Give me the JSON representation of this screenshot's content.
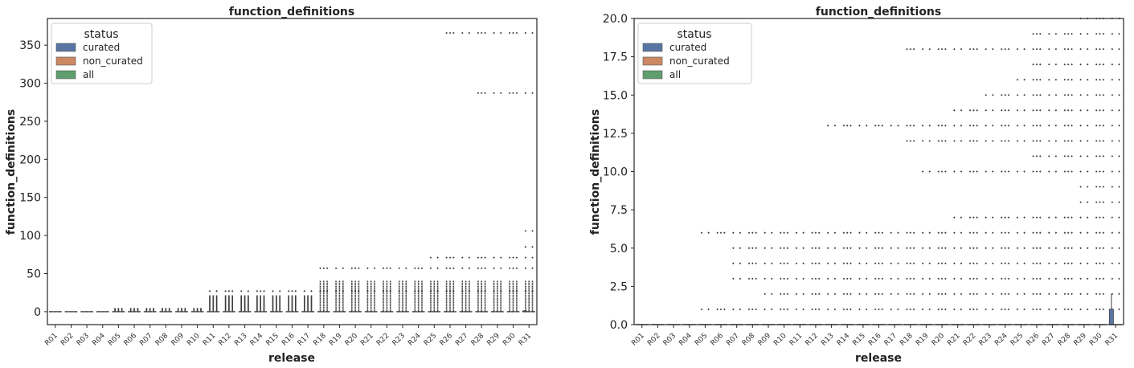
{
  "chart_data": [
    {
      "type": "box",
      "title": "function_definitions",
      "xlabel": "release",
      "ylabel": "function_definitions",
      "ylim": [
        -17,
        385
      ],
      "yticks": [
        0,
        50,
        100,
        150,
        200,
        250,
        300,
        350
      ],
      "ytick_labels": [
        "0",
        "50",
        "100",
        "150",
        "200",
        "250",
        "300",
        "350"
      ],
      "categories": [
        "R01",
        "R02",
        "R03",
        "R04",
        "R05",
        "R06",
        "R07",
        "R08",
        "R09",
        "R10",
        "R11",
        "R12",
        "R13",
        "R14",
        "R15",
        "R16",
        "R17",
        "R18",
        "R19",
        "R20",
        "R21",
        "R22",
        "R23",
        "R24",
        "R25",
        "R26",
        "R27",
        "R28",
        "R29",
        "R30",
        "R31"
      ],
      "legend": {
        "title": "status",
        "position": "top-left",
        "entries": [
          {
            "label": "curated",
            "color": "#5975a4"
          },
          {
            "label": "non_curated",
            "color": "#cc8963"
          },
          {
            "label": "all",
            "color": "#5f9e6e"
          }
        ]
      },
      "series": [
        {
          "name": "curated",
          "median": [
            0,
            0,
            0,
            0,
            0,
            0,
            0,
            0,
            0,
            0,
            0,
            0,
            0,
            0,
            0,
            0,
            0,
            0,
            0,
            0,
            0,
            0,
            0,
            0,
            0,
            0,
            0,
            0,
            0,
            0,
            0
          ],
          "q3": [
            0,
            0,
            0,
            0,
            0,
            0,
            0,
            0,
            0,
            0,
            0,
            0,
            0,
            0,
            0,
            0,
            0,
            0,
            0,
            0,
            0,
            0,
            0,
            0,
            0,
            0,
            0,
            0,
            0,
            0,
            1
          ],
          "whisker_high": [
            0,
            0,
            0,
            0,
            0,
            0,
            0,
            0,
            0,
            0,
            0,
            0,
            0,
            0,
            0,
            0,
            0,
            0,
            0,
            0,
            0,
            0,
            0,
            0,
            0,
            0,
            0,
            0,
            0,
            0,
            2
          ]
        },
        {
          "name": "non_curated",
          "median": [
            0,
            0,
            0,
            0,
            0,
            0,
            0,
            0,
            0,
            0,
            0,
            0,
            0,
            0,
            0,
            0,
            0,
            0,
            0,
            0,
            0,
            0,
            0,
            0,
            0,
            0,
            0,
            0,
            0,
            0,
            0
          ]
        },
        {
          "name": "all",
          "median": [
            0,
            0,
            0,
            0,
            0,
            0,
            0,
            0,
            0,
            0,
            0,
            0,
            0,
            0,
            0,
            0,
            0,
            0,
            0,
            0,
            0,
            0,
            0,
            0,
            0,
            0,
            0,
            0,
            0,
            0,
            0
          ]
        }
      ],
      "outlier_max": [
        0,
        0,
        0,
        0,
        6,
        6,
        6,
        6,
        6,
        6,
        27,
        27,
        27,
        27,
        27,
        27,
        27,
        57,
        57,
        57,
        57,
        57,
        57,
        57,
        71,
        366,
        366,
        366,
        366,
        366,
        366
      ],
      "outlier_levels": [
        {
          "value": 366,
          "from": "R26",
          "to": "R31"
        },
        {
          "value": 287,
          "from": "R28",
          "to": "R31"
        },
        {
          "value": 106,
          "from": "R31",
          "to": "R31"
        },
        {
          "value": 85,
          "from": "R31",
          "to": "R31"
        },
        {
          "value": 71,
          "from": "R25",
          "to": "R31"
        },
        {
          "value": 57,
          "from": "R18",
          "to": "R31"
        },
        {
          "value": 27,
          "from": "R11",
          "to": "R31"
        }
      ]
    },
    {
      "type": "box",
      "title": "function_definitions",
      "xlabel": "release",
      "ylabel": "function_definitions",
      "ylim": [
        0,
        20
      ],
      "yticks": [
        0,
        2.5,
        5,
        7.5,
        10,
        12.5,
        15,
        17.5,
        20
      ],
      "ytick_labels": [
        "0.0",
        "2.5",
        "5.0",
        "7.5",
        "10.0",
        "12.5",
        "15.0",
        "17.5",
        "20.0"
      ],
      "categories": [
        "R01",
        "R02",
        "R03",
        "R04",
        "R05",
        "R06",
        "R07",
        "R08",
        "R09",
        "R10",
        "R11",
        "R12",
        "R13",
        "R14",
        "R15",
        "R16",
        "R17",
        "R18",
        "R19",
        "R20",
        "R21",
        "R22",
        "R23",
        "R24",
        "R25",
        "R26",
        "R27",
        "R28",
        "R29",
        "R30",
        "R31"
      ],
      "legend": {
        "title": "status",
        "position": "top-left",
        "entries": [
          {
            "label": "curated",
            "color": "#5975a4"
          },
          {
            "label": "non_curated",
            "color": "#cc8963"
          },
          {
            "label": "all",
            "color": "#5f9e6e"
          }
        ]
      },
      "series": [
        {
          "name": "curated",
          "median": [
            0,
            0,
            0,
            0,
            0,
            0,
            0,
            0,
            0,
            0,
            0,
            0,
            0,
            0,
            0,
            0,
            0,
            0,
            0,
            0,
            0,
            0,
            0,
            0,
            0,
            0,
            0,
            0,
            0,
            0,
            0
          ],
          "q3": [
            0,
            0,
            0,
            0,
            0,
            0,
            0,
            0,
            0,
            0,
            0,
            0,
            0,
            0,
            0,
            0,
            0,
            0,
            0,
            0,
            0,
            0,
            0,
            0,
            0,
            0,
            0,
            0,
            0,
            0,
            1
          ],
          "whisker_high": [
            0,
            0,
            0,
            0,
            0,
            0,
            0,
            0,
            0,
            0,
            0,
            0,
            0,
            0,
            0,
            0,
            0,
            0,
            0,
            0,
            0,
            0,
            0,
            0,
            0,
            0,
            0,
            0,
            0,
            0,
            2
          ]
        },
        {
          "name": "non_curated",
          "median": [
            0,
            0,
            0,
            0,
            0,
            0,
            0,
            0,
            0,
            0,
            0,
            0,
            0,
            0,
            0,
            0,
            0,
            0,
            0,
            0,
            0,
            0,
            0,
            0,
            0,
            0,
            0,
            0,
            0,
            0,
            0
          ]
        },
        {
          "name": "all",
          "median": [
            0,
            0,
            0,
            0,
            0,
            0,
            0,
            0,
            0,
            0,
            0,
            0,
            0,
            0,
            0,
            0,
            0,
            0,
            0,
            0,
            0,
            0,
            0,
            0,
            0,
            0,
            0,
            0,
            0,
            0,
            0
          ]
        }
      ],
      "outlier_levels": [
        {
          "value": 20,
          "from": "R29",
          "to": "R31"
        },
        {
          "value": 19,
          "from": "R26",
          "to": "R31"
        },
        {
          "value": 18,
          "from": "R18",
          "to": "R31"
        },
        {
          "value": 17,
          "from": "R26",
          "to": "R31"
        },
        {
          "value": 16,
          "from": "R25",
          "to": "R31"
        },
        {
          "value": 15,
          "from": "R23",
          "to": "R31"
        },
        {
          "value": 14,
          "from": "R21",
          "to": "R31"
        },
        {
          "value": 13,
          "from": "R13",
          "to": "R31"
        },
        {
          "value": 12,
          "from": "R18",
          "to": "R31"
        },
        {
          "value": 11,
          "from": "R26",
          "to": "R31"
        },
        {
          "value": 10,
          "from": "R19",
          "to": "R31"
        },
        {
          "value": 9,
          "from": "R29",
          "to": "R31"
        },
        {
          "value": 8,
          "from": "R29",
          "to": "R31"
        },
        {
          "value": 7,
          "from": "R21",
          "to": "R31"
        },
        {
          "value": 6,
          "from": "R05",
          "to": "R31"
        },
        {
          "value": 5,
          "from": "R07",
          "to": "R31"
        },
        {
          "value": 4,
          "from": "R07",
          "to": "R31"
        },
        {
          "value": 3,
          "from": "R07",
          "to": "R31"
        },
        {
          "value": 2,
          "from": "R09",
          "to": "R31"
        },
        {
          "value": 1,
          "from": "R05",
          "to": "R31"
        }
      ]
    }
  ]
}
